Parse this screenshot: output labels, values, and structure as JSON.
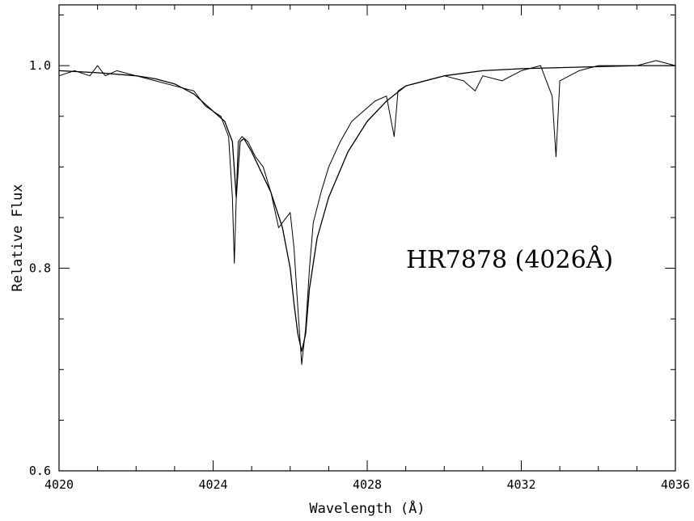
{
  "chart_data": {
    "type": "line",
    "title": "",
    "annotation": "HR7878 (4026Å)",
    "xlabel": "Wavelength (Å)",
    "ylabel": "Relative Flux",
    "xlim": [
      4020,
      4036
    ],
    "ylim": [
      0.6,
      1.06
    ],
    "grid": false,
    "x_ticks": [
      "4020",
      "4024",
      "4028",
      "4032",
      "4036"
    ],
    "y_ticks": [
      "0.6",
      "0.8",
      "1.0"
    ],
    "series": [
      {
        "style": "observed-noisy",
        "x": [
          4020.0,
          4020.4,
          4020.8,
          4021.0,
          4021.2,
          4021.5,
          4022.0,
          4022.5,
          4023.0,
          4023.5,
          4023.8,
          4024.0,
          4024.2,
          4024.4,
          4024.5,
          4024.55,
          4024.6,
          4024.65,
          4024.75,
          4024.9,
          4025.1,
          4025.3,
          4025.5,
          4025.7,
          4025.8,
          4026.0,
          4026.1,
          4026.2,
          4026.3,
          4026.4,
          4026.5,
          4026.6,
          4026.8,
          4027.0,
          4027.3,
          4027.6,
          4027.9,
          4028.2,
          4028.5,
          4028.7,
          4028.8,
          4029.0,
          4029.5,
          4030.0,
          4030.5,
          4030.8,
          4031.0,
          4031.5,
          4032.0,
          4032.5,
          4032.8,
          4032.9,
          4033.0,
          4033.5,
          4034.0,
          4034.5,
          4035.0,
          4035.5,
          4036.0
        ],
        "y": [
          0.99,
          0.995,
          0.99,
          1.0,
          0.99,
          0.995,
          0.99,
          0.985,
          0.98,
          0.975,
          0.96,
          0.955,
          0.95,
          0.93,
          0.87,
          0.805,
          0.87,
          0.925,
          0.93,
          0.925,
          0.91,
          0.9,
          0.875,
          0.84,
          0.845,
          0.855,
          0.82,
          0.76,
          0.705,
          0.74,
          0.8,
          0.845,
          0.875,
          0.9,
          0.925,
          0.945,
          0.955,
          0.965,
          0.97,
          0.93,
          0.975,
          0.98,
          0.985,
          0.99,
          0.985,
          0.975,
          0.99,
          0.985,
          0.995,
          1.0,
          0.97,
          0.91,
          0.985,
          0.995,
          1.0,
          1.0,
          1.0,
          1.005,
          1.0
        ]
      },
      {
        "style": "model-smooth",
        "x": [
          4020.0,
          4021.0,
          4022.0,
          4022.5,
          4023.0,
          4023.5,
          4024.0,
          4024.3,
          4024.5,
          4024.6,
          4024.7,
          4024.8,
          4025.0,
          4025.5,
          4025.8,
          4026.0,
          4026.1,
          4026.2,
          4026.3,
          4026.4,
          4026.5,
          4026.7,
          4027.0,
          4027.5,
          4028.0,
          4028.5,
          4029.0,
          4030.0,
          4031.0,
          4032.0,
          4033.0,
          4034.0,
          4035.0,
          4036.0
        ],
        "y": [
          0.995,
          0.993,
          0.99,
          0.987,
          0.982,
          0.972,
          0.955,
          0.945,
          0.925,
          0.87,
          0.925,
          0.928,
          0.915,
          0.875,
          0.84,
          0.8,
          0.765,
          0.735,
          0.718,
          0.735,
          0.78,
          0.83,
          0.87,
          0.915,
          0.945,
          0.965,
          0.98,
          0.99,
          0.995,
          0.997,
          0.998,
          0.999,
          1.0,
          1.0
        ]
      }
    ]
  }
}
